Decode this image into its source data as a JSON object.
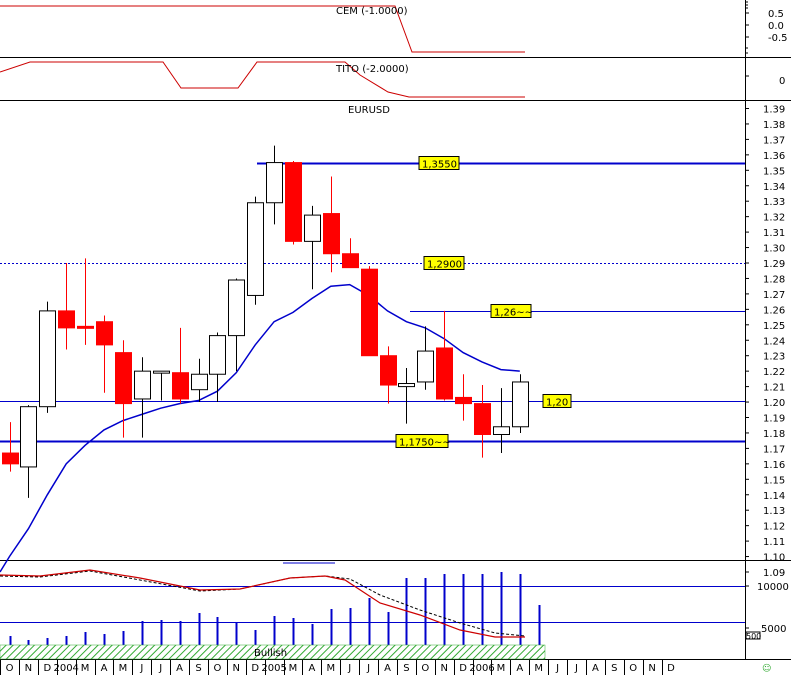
{
  "chart_data": {
    "type": "candlestick",
    "title": "EURUSD",
    "x_axis": {
      "month_letters": [
        "O",
        "N",
        "D",
        "2004",
        "M",
        "A",
        "M",
        "J",
        "J",
        "A",
        "S",
        "O",
        "N",
        "D",
        "2005",
        "M",
        "A",
        "M",
        "J",
        "J",
        "A",
        "S",
        "O",
        "N",
        "D",
        "2006",
        "M",
        "A",
        "M",
        "J",
        "J",
        "A",
        "S",
        "O",
        "N",
        "D"
      ],
      "start": "2003-10",
      "end": "2006-09"
    },
    "price_axis": {
      "min": 1.09,
      "max": 1.39,
      "step": 0.01,
      "tick_labels": [
        "1.39",
        "1.38",
        "1.37",
        "1.36",
        "1.35",
        "1.34",
        "1.33",
        "1.32",
        "1.31",
        "1.30",
        "1.29",
        "1.28",
        "1.27",
        "1.26",
        "1.25",
        "1.24",
        "1.23",
        "1.22",
        "1.21",
        "1.20",
        "1.19",
        "1.18",
        "1.17",
        "1.16",
        "1.15",
        "1.14",
        "1.13",
        "1.12",
        "1.11",
        "1.10",
        "1.09"
      ]
    },
    "candles": [
      {
        "date": "2003-10",
        "open": 1.167,
        "high": 1.187,
        "low": 1.155,
        "close": 1.16
      },
      {
        "date": "2003-11",
        "open": 1.158,
        "high": 1.198,
        "low": 1.138,
        "close": 1.197
      },
      {
        "date": "2003-12",
        "open": 1.197,
        "high": 1.265,
        "low": 1.193,
        "close": 1.259
      },
      {
        "date": "2004-01",
        "open": 1.259,
        "high": 1.29,
        "low": 1.234,
        "close": 1.248
      },
      {
        "date": "2004-02",
        "open": 1.249,
        "high": 1.293,
        "low": 1.237,
        "close": 1.248
      },
      {
        "date": "2004-03",
        "open": 1.252,
        "high": 1.256,
        "low": 1.206,
        "close": 1.237
      },
      {
        "date": "2004-04",
        "open": 1.232,
        "high": 1.24,
        "low": 1.177,
        "close": 1.199
      },
      {
        "date": "2004-05",
        "open": 1.202,
        "high": 1.229,
        "low": 1.177,
        "close": 1.22
      },
      {
        "date": "2004-06",
        "open": 1.22,
        "high": 1.22,
        "low": 1.201,
        "close": 1.22
      },
      {
        "date": "2004-07",
        "open": 1.219,
        "high": 1.248,
        "low": 1.199,
        "close": 1.202
      },
      {
        "date": "2004-08",
        "open": 1.208,
        "high": 1.228,
        "low": 1.2,
        "close": 1.218
      },
      {
        "date": "2004-09",
        "open": 1.218,
        "high": 1.245,
        "low": 1.2,
        "close": 1.243
      },
      {
        "date": "2004-10",
        "open": 1.243,
        "high": 1.28,
        "low": 1.22,
        "close": 1.279
      },
      {
        "date": "2004-11",
        "open": 1.269,
        "high": 1.333,
        "low": 1.263,
        "close": 1.329
      },
      {
        "date": "2004-12",
        "open": 1.329,
        "high": 1.366,
        "low": 1.315,
        "close": 1.355
      },
      {
        "date": "2005-01",
        "open": 1.355,
        "high": 1.356,
        "low": 1.302,
        "close": 1.304
      },
      {
        "date": "2005-02",
        "open": 1.304,
        "high": 1.327,
        "low": 1.273,
        "close": 1.321
      },
      {
        "date": "2005-03",
        "open": 1.322,
        "high": 1.346,
        "low": 1.284,
        "close": 1.296
      },
      {
        "date": "2005-04",
        "open": 1.296,
        "high": 1.306,
        "low": 1.287,
        "close": 1.287
      },
      {
        "date": "2005-05",
        "open": 1.286,
        "high": 1.288,
        "low": 1.231,
        "close": 1.23
      },
      {
        "date": "2005-06",
        "open": 1.23,
        "high": 1.236,
        "low": 1.199,
        "close": 1.211
      },
      {
        "date": "2005-07",
        "open": 1.21,
        "high": 1.222,
        "low": 1.186,
        "close": 1.212
      },
      {
        "date": "2005-08",
        "open": 1.213,
        "high": 1.249,
        "low": 1.208,
        "close": 1.233
      },
      {
        "date": "2005-09",
        "open": 1.235,
        "high": 1.259,
        "low": 1.201,
        "close": 1.202
      },
      {
        "date": "2005-10",
        "open": 1.203,
        "high": 1.218,
        "low": 1.188,
        "close": 1.199
      },
      {
        "date": "2005-11",
        "open": 1.199,
        "high": 1.211,
        "low": 1.164,
        "close": 1.179
      },
      {
        "date": "2005-12",
        "open": 1.179,
        "high": 1.209,
        "low": 1.167,
        "close": 1.184
      },
      {
        "date": "2006-01",
        "open": 1.184,
        "high": 1.218,
        "low": 1.18,
        "close": 1.213
      }
    ],
    "moving_average": [
      {
        "date": "2003-10",
        "value": 1.1
      },
      {
        "date": "2003-11",
        "value": 1.118
      },
      {
        "date": "2003-12",
        "value": 1.14
      },
      {
        "date": "2004-01",
        "value": 1.16
      },
      {
        "date": "2004-02",
        "value": 1.172
      },
      {
        "date": "2004-03",
        "value": 1.182
      },
      {
        "date": "2004-04",
        "value": 1.188
      },
      {
        "date": "2004-05",
        "value": 1.192
      },
      {
        "date": "2004-06",
        "value": 1.196
      },
      {
        "date": "2004-07",
        "value": 1.199
      },
      {
        "date": "2004-08",
        "value": 1.201
      },
      {
        "date": "2004-09",
        "value": 1.207
      },
      {
        "date": "2004-10",
        "value": 1.219
      },
      {
        "date": "2004-11",
        "value": 1.237
      },
      {
        "date": "2004-12",
        "value": 1.252
      },
      {
        "date": "2005-01",
        "value": 1.258
      },
      {
        "date": "2005-02",
        "value": 1.267
      },
      {
        "date": "2005-03",
        "value": 1.275
      },
      {
        "date": "2005-04",
        "value": 1.276
      },
      {
        "date": "2005-05",
        "value": 1.269
      },
      {
        "date": "2005-06",
        "value": 1.259
      },
      {
        "date": "2005-07",
        "value": 1.252
      },
      {
        "date": "2005-08",
        "value": 1.248
      },
      {
        "date": "2005-09",
        "value": 1.241
      },
      {
        "date": "2005-10",
        "value": 1.232
      },
      {
        "date": "2005-11",
        "value": 1.226
      },
      {
        "date": "2005-12",
        "value": 1.221
      },
      {
        "date": "2006-01",
        "value": 1.22
      }
    ],
    "horizontal_levels": [
      {
        "label": "1,3550",
        "value": 1.355,
        "style": "solid-thick"
      },
      {
        "label": "1,2900",
        "value": 1.29,
        "style": "dotted"
      },
      {
        "label": "1,26~~",
        "value": 1.259,
        "style": "solid-thin"
      },
      {
        "label": "1,20",
        "value": 1.201,
        "style": "solid-thin"
      },
      {
        "label": "1,1750~~",
        "value": 1.175,
        "style": "solid-thick"
      }
    ],
    "indicator_cem": {
      "label": "CEM (-1.0000)",
      "tick_labels": [
        "0.5",
        "0.0",
        "-0.5"
      ]
    },
    "indicator_tito": {
      "label": "TITO (-2.0000)",
      "tick_labels": [
        "0"
      ]
    },
    "volume_panel": {
      "tick_labels": [
        "10000",
        "5000"
      ],
      "sub_label": "500"
    },
    "bottom_bar": {
      "label": "Bullish"
    },
    "colors": {
      "bearish": "#ff0000",
      "bullish": "#ffffff",
      "levels": "#0000cc",
      "moving_average": "#0000cc",
      "indicator": "#cc0000",
      "label_box": "#ffff00",
      "bullish_bar": "#33aa33"
    }
  }
}
